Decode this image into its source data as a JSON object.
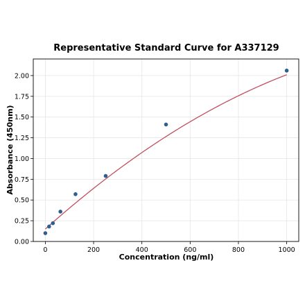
{
  "chart_data": {
    "type": "scatter",
    "title": "Representative Standard Curve for A337129",
    "xlabel": "Concentration (ng/ml)",
    "ylabel": "Absorbance (450nm)",
    "xlim": [
      -50,
      1050
    ],
    "ylim": [
      0,
      2.2
    ],
    "xticks": [
      0,
      200,
      400,
      600,
      800,
      1000
    ],
    "xtick_labels": [
      "0",
      "200",
      "400",
      "600",
      "800",
      "1000"
    ],
    "yticks": [
      0.0,
      0.25,
      0.5,
      0.75,
      1.0,
      1.25,
      1.5,
      1.75,
      2.0
    ],
    "ytick_labels": [
      "0.00",
      "0.25",
      "0.50",
      "0.75",
      "1.00",
      "1.25",
      "1.50",
      "1.75",
      "2.00"
    ],
    "grid": true,
    "series": [
      {
        "type": "scatter",
        "x": [
          0,
          15.6,
          31.25,
          62.5,
          125,
          250,
          500,
          1000
        ],
        "y": [
          0.1,
          0.18,
          0.22,
          0.36,
          0.57,
          0.79,
          1.41,
          2.06
        ],
        "color": "#2f5f8f"
      },
      {
        "type": "line",
        "fit": "quadratic",
        "coefficients": [
          0.15,
          0.0026,
          -7.4e-07
        ],
        "x_range": [
          0,
          1000
        ],
        "color": "#c0505f"
      }
    ]
  }
}
